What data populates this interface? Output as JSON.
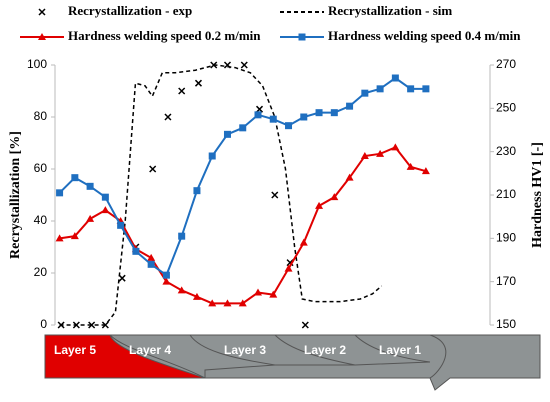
{
  "chart_data": {
    "type": "line",
    "xlim": [
      -0.3,
      28.2
    ],
    "ylabel": "Recrystallization [%]",
    "ylim": [
      0,
      100
    ],
    "yticks": [
      0,
      20,
      40,
      60,
      80,
      100
    ],
    "y2label": "Hardness HV1 [-]",
    "y2lim": [
      150,
      270
    ],
    "y2ticks": [
      150,
      170,
      190,
      210,
      230,
      250,
      270
    ],
    "series": [
      {
        "name": "Recrystallization - exp",
        "color": "#000000",
        "marker": "x",
        "line": false,
        "x": [
          0.1,
          1.1,
          2.1,
          3.0,
          4.1,
          5.0,
          6.1,
          7.1,
          8.0,
          9.1,
          10.1,
          11.0,
          12.1,
          13.1,
          14.1,
          15.1,
          16.1
        ],
        "values": [
          0,
          0,
          0,
          0,
          18,
          30,
          60,
          80,
          90,
          93,
          100,
          100,
          100,
          83,
          50,
          24,
          0
        ]
      },
      {
        "name": "Recrystallization - sim",
        "color": "#000000",
        "marker": "none",
        "line": true,
        "dash": true,
        "x": [
          0,
          3,
          3.66,
          4.3,
          4.97,
          5.6,
          6.08,
          6.73,
          7.58,
          8.9,
          10.2,
          11.5,
          12.5,
          13.3,
          14.1,
          14.8,
          15.4,
          15.9,
          16.7,
          18.4,
          19.7,
          20.5,
          21.1
        ],
        "values": [
          0,
          0,
          5,
          40,
          93,
          92,
          88,
          97,
          97,
          98,
          100,
          99,
          97,
          92,
          80,
          60,
          30,
          10,
          9,
          9,
          10,
          12,
          15
        ]
      },
      {
        "name": "Hardness welding speed 0.2 m/min",
        "color": "#e00000",
        "marker": "triangle",
        "line": true,
        "axis": "y2",
        "x": [
          0,
          1,
          2,
          3,
          4,
          5,
          6,
          7,
          8,
          9,
          10,
          11,
          12,
          13,
          14,
          15,
          16,
          17,
          18,
          19,
          20,
          21,
          22,
          23,
          24
        ],
        "values": [
          190,
          191,
          199,
          203,
          198,
          185,
          181,
          170,
          166,
          163,
          160,
          160,
          160,
          165,
          164,
          176,
          188,
          205,
          209,
          218,
          228,
          229,
          232,
          223,
          221
        ]
      },
      {
        "name": "Hardness welding speed 0.4 m/min",
        "color": "#1f6fc0",
        "marker": "square",
        "line": true,
        "axis": "y2",
        "x": [
          0,
          1,
          2,
          3,
          4,
          5,
          6,
          7,
          8,
          9,
          10,
          11,
          12,
          13,
          14,
          15,
          16,
          17,
          18,
          19,
          20,
          21,
          22,
          23,
          24
        ],
        "values": [
          211,
          218,
          214,
          209,
          196,
          184,
          178,
          173,
          191,
          212,
          228,
          238,
          241,
          247,
          245,
          242,
          246,
          248,
          248,
          251,
          257,
          259,
          264,
          259,
          259
        ]
      }
    ],
    "annotations": [
      "Layer 5",
      "Layer 4",
      "Layer 3",
      "Layer 2",
      "Layer 1"
    ]
  }
}
